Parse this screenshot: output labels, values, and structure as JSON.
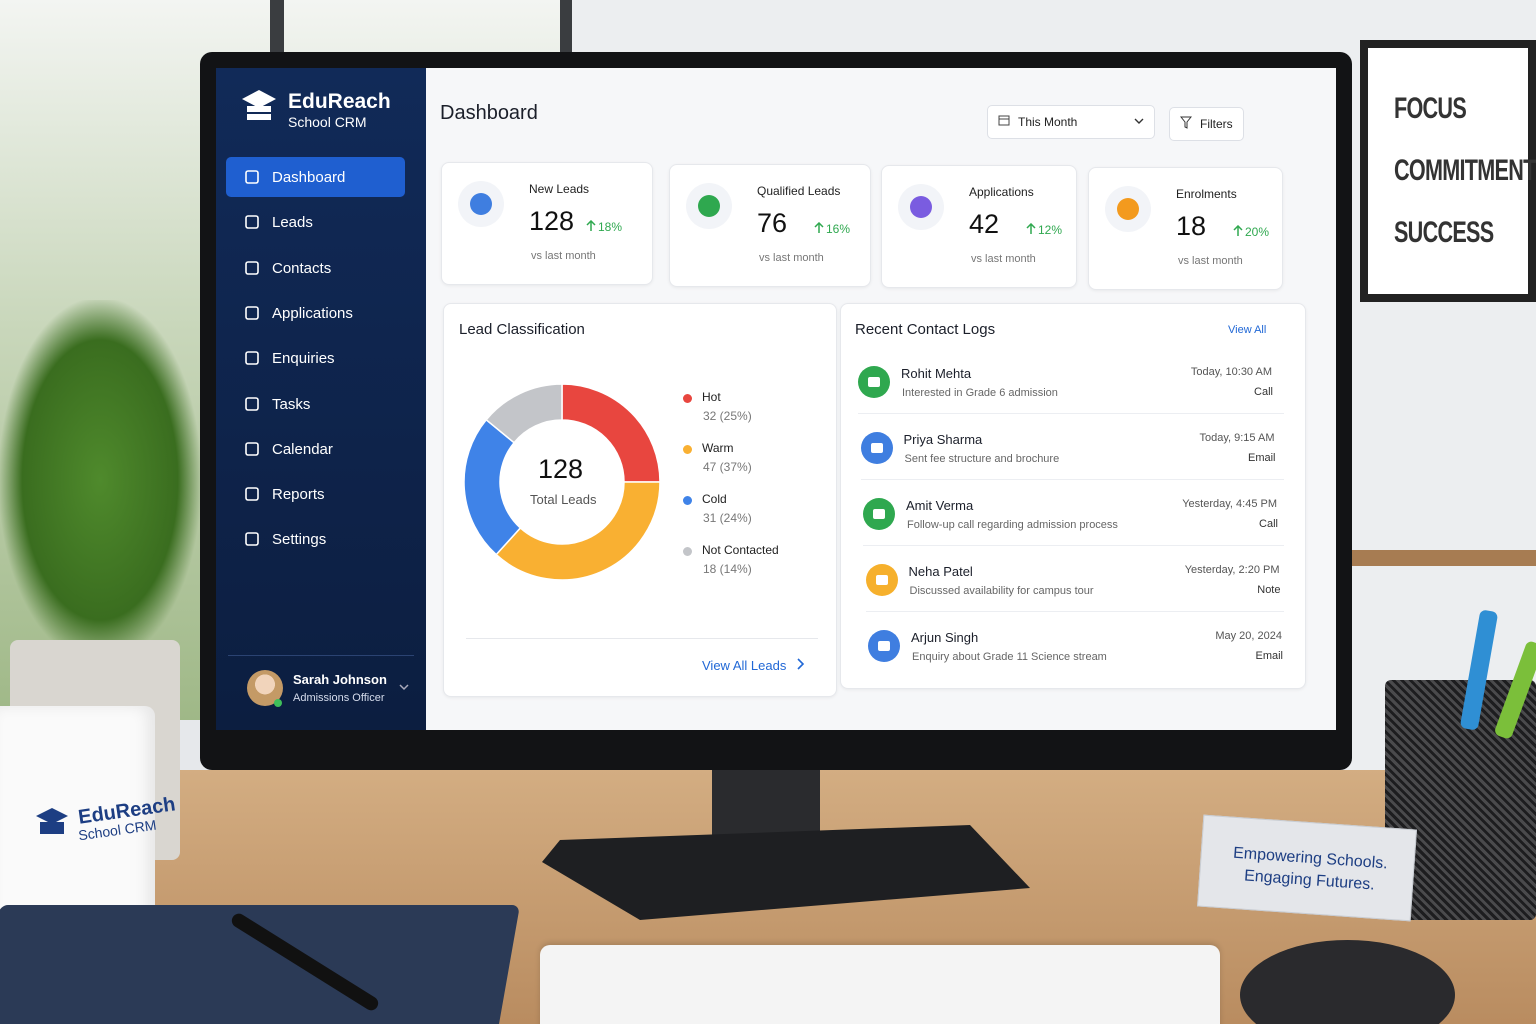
{
  "sidebar": {
    "brand": "EduReach",
    "subtitle": "School CRM",
    "nav": [
      "Dashboard",
      "Leads",
      "Contacts",
      "Applications",
      "Enquiries",
      "Tasks",
      "Calendar",
      "Reports",
      "Settings"
    ],
    "active": 0,
    "user": {
      "name": "Sarah Johnson",
      "role": "Admissions Officer"
    }
  },
  "header": {
    "title": "Dashboard",
    "period": "This Month",
    "filters": "Filters"
  },
  "stats": [
    {
      "label": "New Leads",
      "value": 128,
      "change": "18%",
      "note": "vs last month"
    },
    {
      "label": "Qualified Leads",
      "value": 76,
      "change": "16%",
      "note": "vs last month"
    },
    {
      "label": "Applications",
      "value": 42,
      "change": "12%",
      "note": "vs last month"
    },
    {
      "label": "Enrolments",
      "value": 18,
      "change": "20%",
      "note": "vs last month"
    }
  ],
  "chart_data": {
    "type": "donut",
    "title": "Lead Classification",
    "center_value": 128,
    "center_label": "Total Leads",
    "categories": [
      "Hot",
      "Warm",
      "Cold",
      "Not Contacted"
    ],
    "values": [
      32,
      47,
      31,
      18
    ],
    "value_labels": [
      "32 (25%)",
      "47 (37%)",
      "31 (24%)",
      "18 (14%)"
    ],
    "colors": [
      "#e8463f",
      "#f9b032",
      "#3f83e8",
      "#c3c5c9"
    ],
    "link": "View All Leads"
  },
  "contact_logs": {
    "title": "Recent Contact Logs",
    "view_all": "View All",
    "items": [
      {
        "name": "Rohit Mehta",
        "detail": "Interested in Grade 6 admission",
        "time": "Today, 10:30 AM",
        "kind": "Call"
      },
      {
        "name": "Priya Sharma",
        "detail": "Sent fee structure and brochure",
        "time": "Today, 9:15 AM",
        "kind": "Email"
      },
      {
        "name": "Amit Verma",
        "detail": "Follow-up call regarding admission process",
        "time": "Yesterday, 4:45 PM",
        "kind": "Call"
      },
      {
        "name": "Neha Patel",
        "detail": "Discussed availability for campus tour",
        "time": "Yesterday, 2:20 PM",
        "kind": "Note"
      },
      {
        "name": "Arjun Singh",
        "detail": "Enquiry about Grade 11 Science stream",
        "time": "May 20, 2024",
        "kind": "Email"
      }
    ]
  },
  "scene": {
    "poster": [
      "FOCUS",
      "COMMITMENT",
      "SUCCESS"
    ],
    "mug": [
      "EduReach",
      "School CRM"
    ],
    "sign": [
      "Empowering Schools.",
      "Engaging Futures."
    ]
  }
}
